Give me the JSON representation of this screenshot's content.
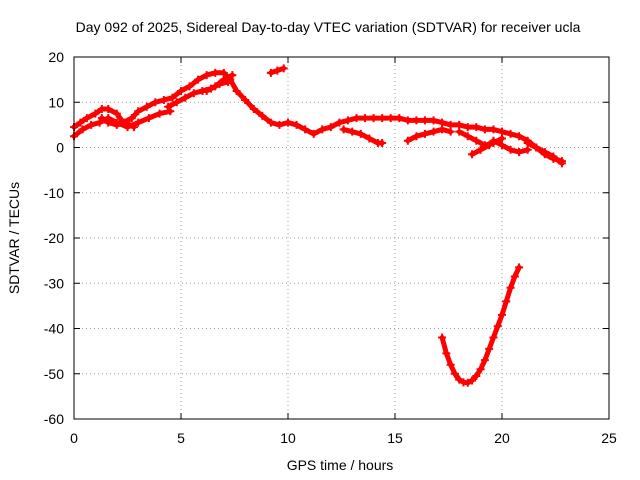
{
  "chart_data": {
    "type": "scatter",
    "title": "Day 092 of 2025, Sidereal Day-to-day VTEC variation (SDTVAR) for receiver ucla",
    "xlabel": "GPS time / hours",
    "ylabel": "SDTVAR / TECUs",
    "xlim": [
      0,
      25
    ],
    "ylim": [
      -60,
      20
    ],
    "xticks": [
      0,
      5,
      10,
      15,
      20,
      25
    ],
    "yticks": [
      -60,
      -50,
      -40,
      -30,
      -20,
      -10,
      0,
      10,
      20
    ],
    "grid": true,
    "color": "#ff0000",
    "series": [
      {
        "name": "track-1",
        "x": [
          0.0,
          0.3,
          0.6,
          1.0,
          1.3,
          1.6,
          2.0,
          2.3,
          2.7,
          3.0,
          3.4,
          3.8,
          4.2,
          4.6,
          5.0,
          5.4,
          5.8,
          6.2,
          6.6,
          7.0,
          7.3,
          7.6,
          8.0,
          8.4,
          8.8,
          9.2,
          9.6,
          10.0,
          10.4,
          10.8,
          11.2,
          11.6,
          12.0,
          12.4,
          12.8,
          13.2,
          13.6,
          14.0,
          14.4,
          14.8,
          15.2,
          15.6,
          16.0,
          16.4,
          16.8,
          17.2,
          17.6,
          18.0,
          18.4,
          18.8,
          19.2,
          19.6,
          20.0,
          20.4,
          20.8,
          21.2,
          21.6,
          22.0,
          22.4,
          22.8
        ],
        "y": [
          4.5,
          5.5,
          6.5,
          7.5,
          8.5,
          8.5,
          7.5,
          5.5,
          6.5,
          8.0,
          9.0,
          10.0,
          10.5,
          11.0,
          12.5,
          13.5,
          15.0,
          16.0,
          16.5,
          16.5,
          15.0,
          12.5,
          10.5,
          8.5,
          7.0,
          5.5,
          5.0,
          5.5,
          5.0,
          4.0,
          3.0,
          4.0,
          4.5,
          5.5,
          6.0,
          6.5,
          6.5,
          6.5,
          6.5,
          6.5,
          6.5,
          6.0,
          6.0,
          6.0,
          6.0,
          5.5,
          5.0,
          5.0,
          4.5,
          4.5,
          4.0,
          4.0,
          3.5,
          3.0,
          2.5,
          1.5,
          0.0,
          -1.5,
          -2.5,
          -3.0
        ]
      },
      {
        "name": "track-2",
        "x": [
          0.0,
          0.4,
          0.8,
          1.2,
          1.6,
          2.0,
          2.5,
          3.0,
          3.5,
          4.0,
          4.5
        ],
        "y": [
          2.5,
          4.0,
          5.0,
          5.5,
          6.5,
          5.5,
          4.5,
          5.5,
          6.5,
          7.5,
          8.0
        ]
      },
      {
        "name": "track-3",
        "x": [
          1.3,
          1.6,
          2.0,
          2.4,
          2.8
        ],
        "y": [
          6.5,
          5.5,
          5.0,
          5.5,
          4.5
        ]
      },
      {
        "name": "track-4",
        "x": [
          4.4,
          4.8,
          5.2,
          5.6,
          6.0,
          6.4,
          6.8,
          7.2
        ],
        "y": [
          9.0,
          10.0,
          11.0,
          12.0,
          12.5,
          13.0,
          14.0,
          14.5
        ]
      },
      {
        "name": "track-5",
        "x": [
          6.2,
          6.6,
          7.0,
          7.4
        ],
        "y": [
          12.5,
          13.5,
          15.0,
          16.0
        ]
      },
      {
        "name": "track-6",
        "x": [
          9.2,
          9.5,
          9.8
        ],
        "y": [
          16.5,
          17.0,
          17.5
        ]
      },
      {
        "name": "track-7",
        "x": [
          12.6,
          13.0,
          13.4,
          13.8,
          14.2,
          14.4
        ],
        "y": [
          4.0,
          3.5,
          3.0,
          2.0,
          1.0,
          1.0
        ]
      },
      {
        "name": "track-8",
        "x": [
          15.6,
          16.0,
          16.4,
          16.8,
          17.2,
          17.6
        ],
        "y": [
          1.5,
          2.5,
          3.0,
          3.5,
          4.0,
          3.5
        ]
      },
      {
        "name": "track-9",
        "x": [
          18.0,
          18.4,
          18.8,
          19.2,
          19.6,
          20.0
        ],
        "y": [
          3.5,
          2.5,
          1.5,
          0.5,
          1.0,
          2.0
        ]
      },
      {
        "name": "track-10",
        "x": [
          18.6,
          19.0,
          19.4
        ],
        "y": [
          -1.5,
          -0.5,
          0.5
        ]
      },
      {
        "name": "track-11",
        "x": [
          19.6,
          20.0,
          20.4,
          20.8,
          21.2
        ],
        "y": [
          1.5,
          0.5,
          -0.5,
          -1.0,
          -0.5
        ]
      },
      {
        "name": "track-12",
        "x": [
          21.2,
          21.6,
          22.0,
          22.4,
          22.8
        ],
        "y": [
          1.0,
          0.0,
          -1.0,
          -2.0,
          -3.5
        ]
      },
      {
        "name": "track-13",
        "x": [
          17.2,
          17.4,
          17.6,
          17.8,
          18.0,
          18.2,
          18.4,
          18.6,
          18.8,
          19.0,
          19.2,
          19.4,
          19.6,
          19.8,
          20.0,
          20.2,
          20.4,
          20.6,
          20.8
        ],
        "y": [
          -42.0,
          -45.5,
          -48.0,
          -50.0,
          -51.3,
          -51.9,
          -52.0,
          -51.5,
          -50.5,
          -49.0,
          -47.0,
          -44.5,
          -42.0,
          -39.5,
          -37.0,
          -34.0,
          -31.0,
          -28.5,
          -26.5
        ]
      }
    ]
  }
}
